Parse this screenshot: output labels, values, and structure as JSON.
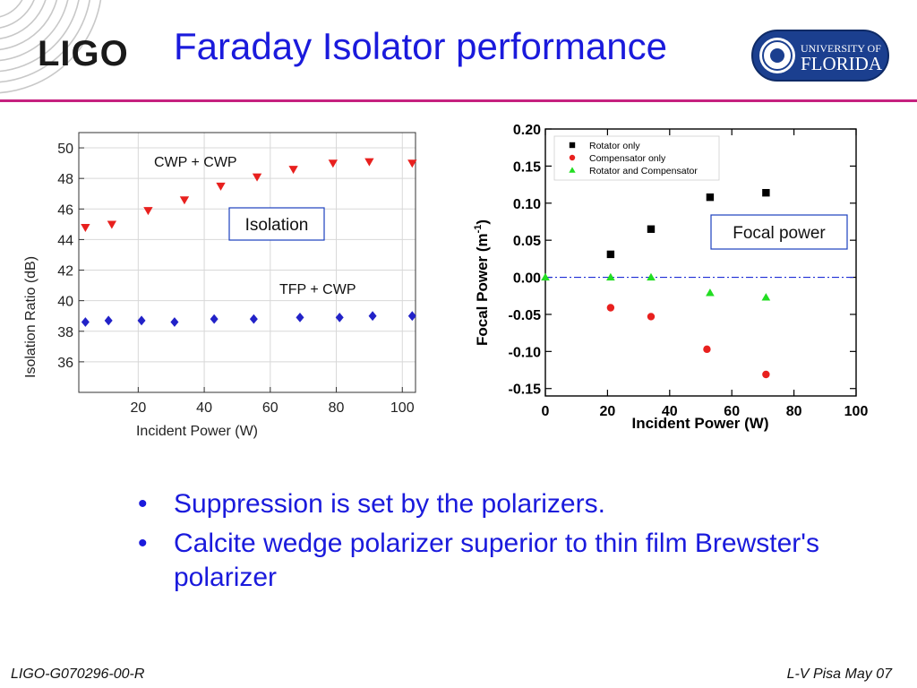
{
  "header": {
    "logo_text": "LIGO",
    "title": "Faraday Isolator performance",
    "university_line1": "UNIVERSITY OF",
    "university_line2": "FLORIDA"
  },
  "colors": {
    "title_blue": "#1a1adc",
    "rule_magenta": "#c6207f",
    "uf_navy": "#1b3f8f"
  },
  "chart_data": [
    {
      "type": "scatter",
      "xlabel": "Incident Power (W)",
      "ylabel": "Isolation Ratio (dB)",
      "xlim": [
        2,
        104
      ],
      "ylim": [
        34,
        51
      ],
      "xticks": [
        "20",
        "40",
        "60",
        "80",
        "100"
      ],
      "yticks": [
        "36",
        "38",
        "40",
        "42",
        "44",
        "46",
        "48",
        "50"
      ],
      "grid": true,
      "box_label": "Isolation",
      "series": [
        {
          "name": "CWP + CWP",
          "color": "#e8201e",
          "marker": "triangle-down",
          "x": [
            4,
            12,
            23,
            34,
            45,
            56,
            67,
            79,
            90,
            103
          ],
          "y": [
            44.8,
            45.0,
            45.9,
            46.6,
            47.5,
            48.1,
            48.6,
            49.0,
            49.1,
            49.0
          ]
        },
        {
          "name": "TFP + CWP",
          "color": "#2222c8",
          "marker": "diamond",
          "x": [
            4,
            11,
            21,
            31,
            43,
            55,
            69,
            81,
            91,
            103
          ],
          "y": [
            38.6,
            38.7,
            38.7,
            38.6,
            38.8,
            38.8,
            38.9,
            38.9,
            39.0,
            39.0
          ]
        }
      ]
    },
    {
      "type": "scatter",
      "xlabel": "Incident Power (W)",
      "ylabel": "Focal Power (m",
      "ylabel_sup": "-1",
      "ylabel_close": ")",
      "xlim": [
        0,
        100
      ],
      "ylim": [
        -0.16,
        0.2
      ],
      "xticks": [
        "0",
        "20",
        "40",
        "60",
        "80",
        "100"
      ],
      "yticks": [
        "0.20",
        "0.15",
        "0.10",
        "0.05",
        "0.00",
        "-0.05",
        "-0.10",
        "-0.15"
      ],
      "grid": false,
      "legend": "top-left",
      "box_label": "Focal power",
      "reference_line_y": 0,
      "series": [
        {
          "name": "Rotator only",
          "color": "#000000",
          "marker": "square",
          "x": [
            21,
            34,
            53,
            71
          ],
          "y": [
            0.031,
            0.065,
            0.108,
            0.114
          ]
        },
        {
          "name": "Compensator only",
          "color": "#e8201e",
          "marker": "circle",
          "x": [
            21,
            34,
            52,
            71
          ],
          "y": [
            -0.041,
            -0.053,
            -0.097,
            -0.131
          ]
        },
        {
          "name": "Rotator and Compensator",
          "color": "#22dd22",
          "marker": "triangle-up",
          "x": [
            0,
            21,
            34,
            53,
            71
          ],
          "y": [
            0.0,
            0.0,
            0.0,
            -0.021,
            -0.027
          ]
        }
      ]
    }
  ],
  "bullets": [
    "Suppression is set by the polarizers.",
    "Calcite wedge polarizer superior to thin film Brewster's polarizer"
  ],
  "bullet_glyph": "•",
  "footer": {
    "left": "LIGO-G070296-00-R",
    "right": "L-V Pisa May 07"
  }
}
